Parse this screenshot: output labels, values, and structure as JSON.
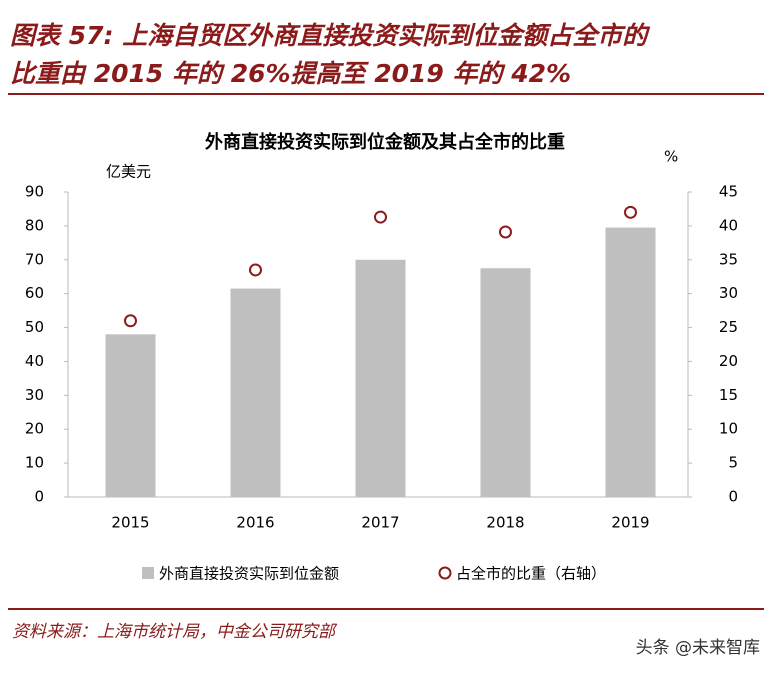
{
  "header": {
    "title": [
      "图表 57: 上海自贸区外商直接投资实际到位金额占全市的",
      "比重由 2015 年的 26%提高至 2019 年的 42%"
    ]
  },
  "chart_data": {
    "type": "bar",
    "title": "外商直接投资实际到位金额及其占全市的比重",
    "y_label": "亿美元",
    "y2_label": "%",
    "categories": [
      "2015",
      "2016",
      "2017",
      "2018",
      "2019"
    ],
    "series": [
      {
        "name": "外商直接投资实际到位金额",
        "type": "bar",
        "color": "#bfbfbf",
        "values": [
          48,
          61.5,
          70,
          67.5,
          79.5
        ]
      },
      {
        "name": "占全市的比重（右轴）",
        "type": "scatter",
        "color": "#8b1a1a",
        "axis": "y2",
        "values": [
          26,
          33.5,
          41.3,
          39.1,
          42
        ]
      }
    ],
    "ylim": [
      0,
      90
    ],
    "yticks": [
      0,
      10,
      20,
      30,
      40,
      50,
      60,
      70,
      80,
      90
    ],
    "y2lim": [
      0,
      45
    ],
    "y2ticks": [
      0,
      5,
      10,
      15,
      20,
      25,
      30,
      35,
      40,
      45
    ],
    "legend": "bottom"
  },
  "footer": {
    "source": "资料来源：上海市统计局，中金公司研究部",
    "watermark": "头条 @未来智库"
  }
}
